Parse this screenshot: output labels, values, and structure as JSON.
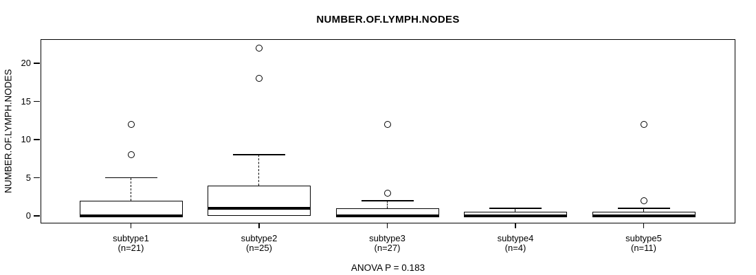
{
  "title": "NUMBER.OF.LYMPH.NODES",
  "y_axis_title": "NUMBER.OF.LYMPH.NODES",
  "footer_annotation": "ANOVA P = 0.183",
  "colors": {
    "line": "#000000",
    "box_fill": "#ffffff",
    "background": "#ffffff"
  },
  "chart_data": {
    "type": "boxplot",
    "title": "NUMBER.OF.LYMPH.NODES",
    "xlabel": "",
    "ylabel": "NUMBER.OF.LYMPH.NODES",
    "annotation": "ANOVA P = 0.183",
    "ylim": [
      -1.0,
      23.2
    ],
    "yticks": [
      0,
      5,
      10,
      15,
      20
    ],
    "grid": false,
    "legend": "none",
    "groups": [
      {
        "label": "subtype1",
        "sublabel": "(n=21)",
        "n": 21,
        "q1": 0,
        "median": 0,
        "q3": 2,
        "whisker_low": 0,
        "whisker_high": 5,
        "outliers": [
          8,
          12
        ]
      },
      {
        "label": "subtype2",
        "sublabel": "(n=25)",
        "n": 25,
        "q1": 0,
        "median": 1,
        "q3": 4,
        "whisker_low": 0,
        "whisker_high": 8,
        "outliers": [
          18,
          22
        ]
      },
      {
        "label": "subtype3",
        "sublabel": "(n=27)",
        "n": 27,
        "q1": 0,
        "median": 0,
        "q3": 1,
        "whisker_low": 0,
        "whisker_high": 2,
        "outliers": [
          3,
          12
        ]
      },
      {
        "label": "subtype4",
        "sublabel": "(n=4)",
        "n": 4,
        "q1": 0,
        "median": 0,
        "q3": 0.5,
        "whisker_low": 0,
        "whisker_high": 1,
        "outliers": []
      },
      {
        "label": "subtype5",
        "sublabel": "(n=11)",
        "n": 11,
        "q1": 0,
        "median": 0,
        "q3": 0.5,
        "whisker_low": 0,
        "whisker_high": 1,
        "outliers": [
          2,
          12
        ]
      }
    ]
  }
}
